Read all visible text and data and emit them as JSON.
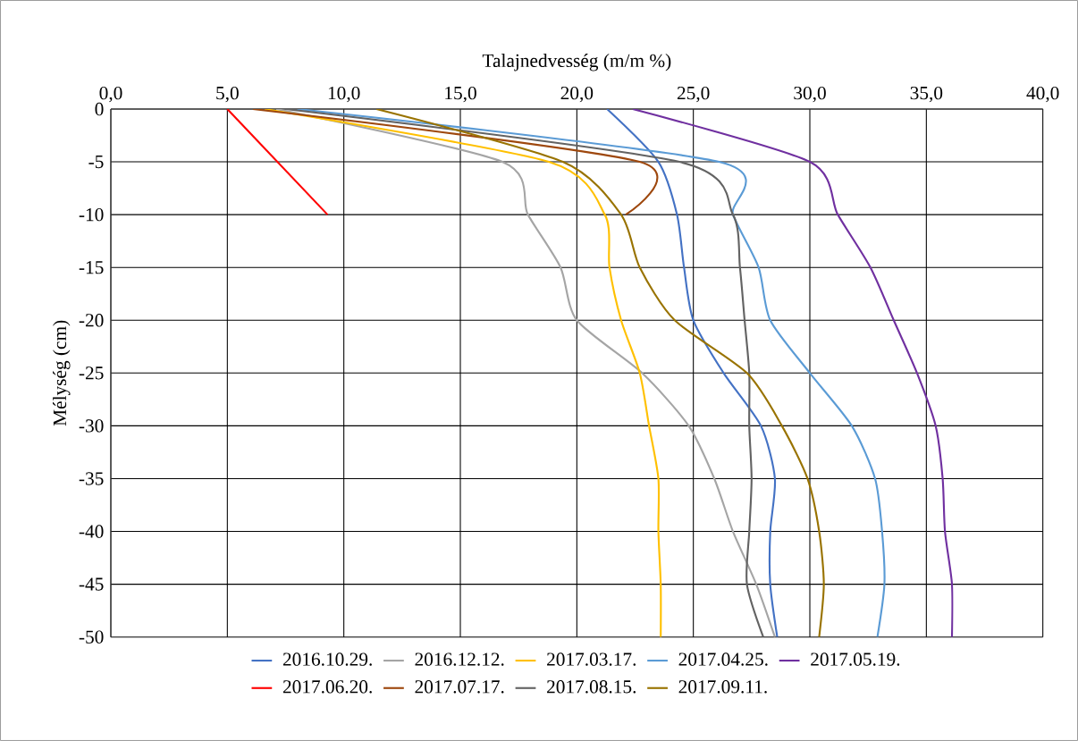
{
  "chart_data": {
    "type": "line",
    "xlabel": "Talajnedvesség (m/m %)",
    "ylabel": "Mélység (cm)",
    "xlim": [
      0,
      40
    ],
    "ylim": [
      -50,
      0
    ],
    "xticks": [
      {
        "value": 0,
        "label": "0,0"
      },
      {
        "value": 5,
        "label": "5,0"
      },
      {
        "value": 10,
        "label": "10,0"
      },
      {
        "value": 15,
        "label": "15,0"
      },
      {
        "value": 20,
        "label": "20,0"
      },
      {
        "value": 25,
        "label": "25,0"
      },
      {
        "value": 30,
        "label": "30,0"
      },
      {
        "value": 35,
        "label": "35,0"
      },
      {
        "value": 40,
        "label": "40,0"
      }
    ],
    "yticks": [
      0,
      -5,
      -10,
      -15,
      -20,
      -25,
      -30,
      -35,
      -40,
      -45,
      -50
    ],
    "grid": true,
    "legend": "bottom",
    "series": [
      {
        "name": "2016.10.29.",
        "color": "#4472c4",
        "x": [
          21.3,
          23.5,
          24.3,
          24.6,
          25.0,
          26.3,
          27.9,
          28.5,
          28.3,
          28.3,
          28.6
        ],
        "values": [
          0,
          -5,
          -10,
          -15,
          -20,
          -25,
          -30,
          -35,
          -40,
          -45,
          -50
        ]
      },
      {
        "name": "2016.12.12.",
        "color": "#a5a5a5",
        "x": [
          7.1,
          16.8,
          17.9,
          19.3,
          20.0,
          22.8,
          24.8,
          25.9,
          26.7,
          27.7,
          28.5
        ],
        "values": [
          0,
          -5,
          -10,
          -15,
          -20,
          -25,
          -30,
          -35,
          -40,
          -45,
          -50
        ]
      },
      {
        "name": "2017.03.17.",
        "color": "#ffc000",
        "x": [
          6.6,
          18.8,
          21.2,
          21.4,
          21.9,
          22.7,
          23.1,
          23.5,
          23.5,
          23.6,
          23.6
        ],
        "values": [
          0,
          -5,
          -10,
          -15,
          -20,
          -25,
          -30,
          -35,
          -40,
          -45,
          -50
        ]
      },
      {
        "name": "2017.04.25.",
        "color": "#5b9bd5",
        "x": [
          8.0,
          26.1,
          26.7,
          27.8,
          28.3,
          30.0,
          31.8,
          32.8,
          33.1,
          33.2,
          32.9
        ],
        "values": [
          0,
          -5,
          -10,
          -15,
          -20,
          -25,
          -30,
          -35,
          -40,
          -45,
          -50
        ]
      },
      {
        "name": "2017.05.19.",
        "color": "#7030a0",
        "x": [
          22.4,
          30.0,
          31.2,
          32.6,
          33.6,
          34.6,
          35.4,
          35.7,
          35.8,
          36.1,
          36.1
        ],
        "values": [
          0,
          -5,
          -10,
          -15,
          -20,
          -25,
          -30,
          -35,
          -40,
          -45,
          -50
        ]
      },
      {
        "name": "2017.06.20.",
        "color": "#ff0000",
        "x": [
          5.0,
          9.3
        ],
        "values": [
          0,
          -10
        ]
      },
      {
        "name": "2017.07.17.",
        "color": "#9e480e",
        "x": [
          6.1,
          22.7,
          22.1
        ],
        "values": [
          0,
          -5,
          -10
        ]
      },
      {
        "name": "2017.08.15.",
        "color": "#636363",
        "x": [
          7.5,
          24.4,
          26.7,
          27.0,
          27.2,
          27.4,
          27.4,
          27.5,
          27.4,
          27.3,
          28.0
        ],
        "values": [
          0,
          -5,
          -10,
          -15,
          -20,
          -25,
          -30,
          -35,
          -40,
          -45,
          -50
        ]
      },
      {
        "name": "2017.09.11.",
        "color": "#997300",
        "x": [
          11.4,
          19.4,
          21.9,
          22.7,
          24.2,
          27.3,
          28.8,
          29.9,
          30.4,
          30.6,
          30.4
        ],
        "values": [
          0,
          -5,
          -10,
          -15,
          -20,
          -25,
          -30,
          -35,
          -40,
          -45,
          -50
        ]
      }
    ]
  }
}
